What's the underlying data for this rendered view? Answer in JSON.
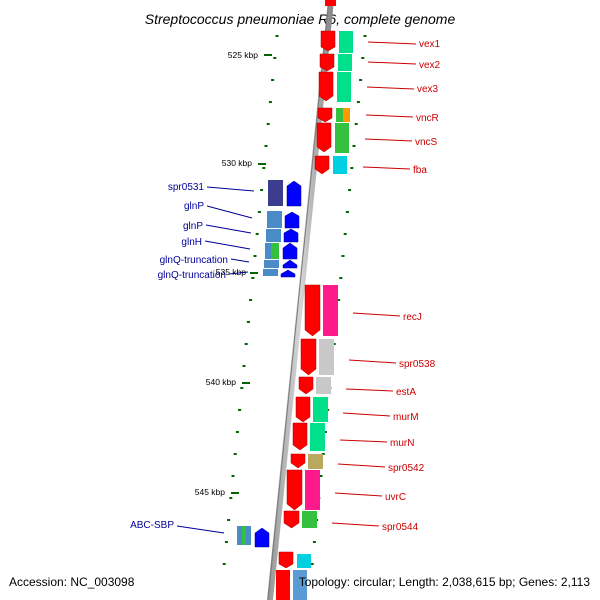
{
  "title": "Streptococcus pneumoniae R6, complete genome",
  "footer": {
    "accession": "Accession: NC_003098",
    "topology": "Topology: circular; Length: 2,038,615 bp; Genes: 2,113"
  },
  "ticks": [
    "525 kbp",
    "530 kbp",
    "535 kbp",
    "540 kbp",
    "545 kbp"
  ],
  "genes_right": [
    "vex1",
    "vex2",
    "vex3",
    "vncR",
    "vncS",
    "fba",
    "recJ",
    "spr0538",
    "estA",
    "murM",
    "murN",
    "spr0542",
    "uvrC",
    "spr0544"
  ],
  "genes_left": [
    "spr0531",
    "glnP",
    "glnP",
    "glnH",
    "glnQ-truncation",
    "glnQ-truncation",
    "ABC-SBP"
  ],
  "colors": {
    "forward_label": "#cc0000",
    "reverse_label": "#000099",
    "forward_arrow": "#ff0000",
    "reverse_arrow": "#0000ff",
    "tick": "#006600"
  }
}
